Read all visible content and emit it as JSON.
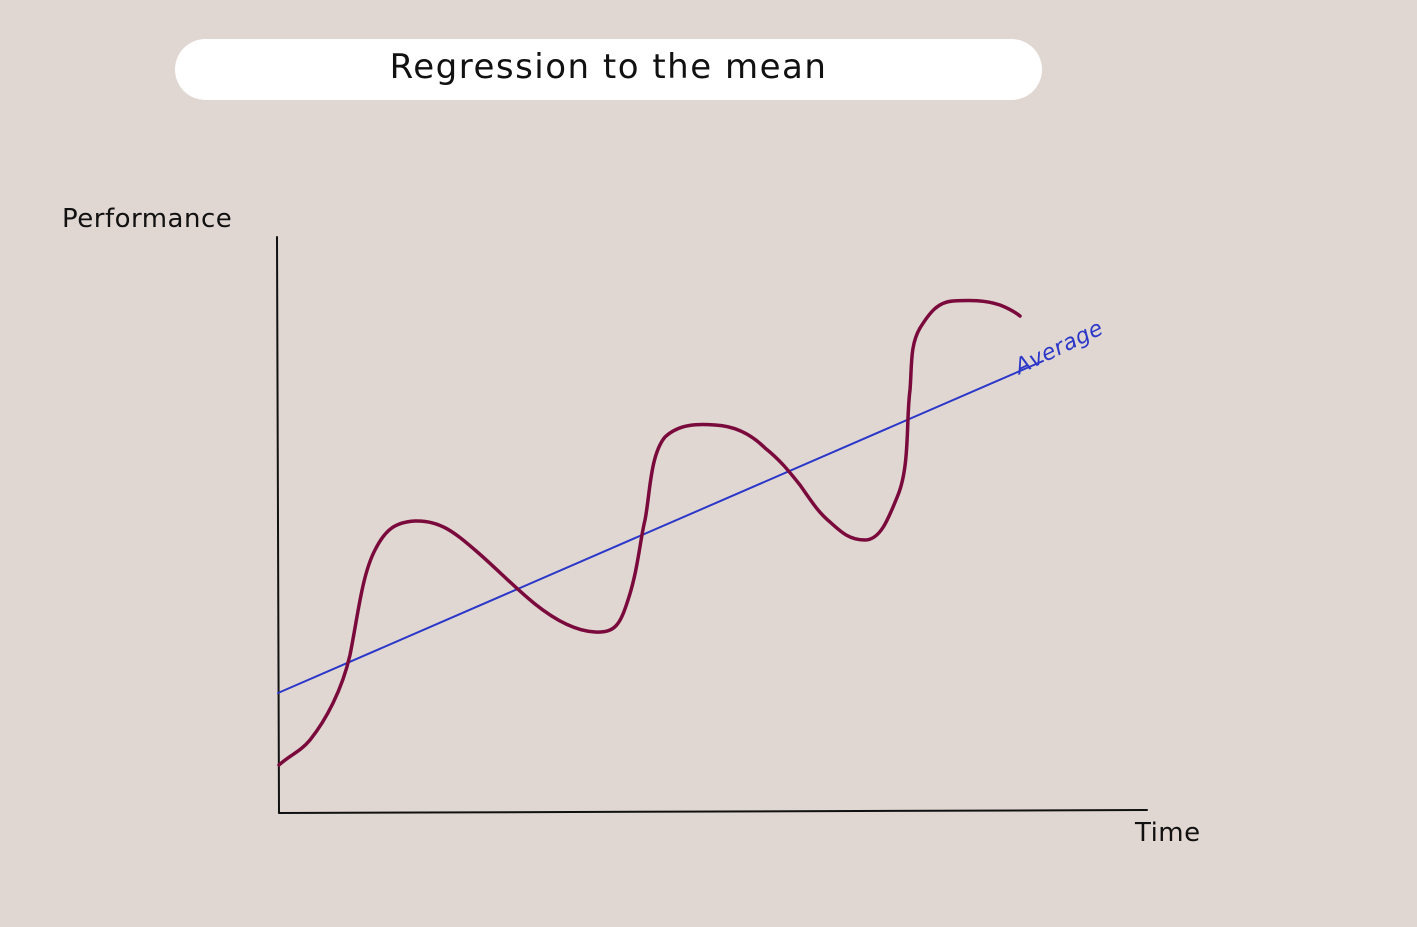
{
  "title": "Regression to the mean",
  "y_axis_label": "Performance",
  "x_axis_label": "Time",
  "average_label": "Average",
  "colors": {
    "background": "#e1d7d2",
    "title_pill": "#ffffff",
    "axis": "#111111",
    "performance_curve": "#7a0a3c",
    "average_line": "#2b37c9"
  }
}
